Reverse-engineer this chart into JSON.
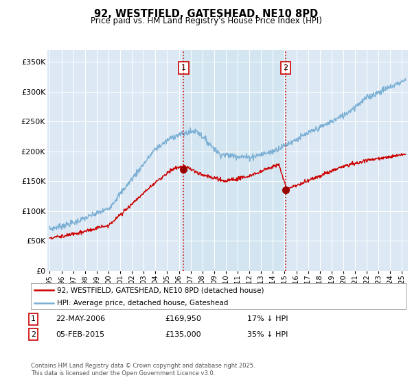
{
  "title": "92, WESTFIELD, GATESHEAD, NE10 8PD",
  "subtitle": "Price paid vs. HM Land Registry's House Price Index (HPI)",
  "ylabel_ticks": [
    "£0",
    "£50K",
    "£100K",
    "£150K",
    "£200K",
    "£250K",
    "£300K",
    "£350K"
  ],
  "ytick_values": [
    0,
    50000,
    100000,
    150000,
    200000,
    250000,
    300000,
    350000
  ],
  "ylim": [
    0,
    370000
  ],
  "xlim_start": 1994.8,
  "xlim_end": 2025.5,
  "hpi_color": "#7bafd4",
  "hpi_fill_color": "#d0e4f0",
  "price_color": "#cc0000",
  "vline_color": "#cc0000",
  "vline1_x": 2006.39,
  "vline2_x": 2015.09,
  "marker1_x": 2006.39,
  "marker1_y": 169950,
  "marker2_x": 2015.09,
  "marker2_y": 135000,
  "marker_color": "#990000",
  "legend_label_red": "92, WESTFIELD, GATESHEAD, NE10 8PD (detached house)",
  "legend_label_blue": "HPI: Average price, detached house, Gateshead",
  "annotation1_date": "22-MAY-2006",
  "annotation1_price": "£169,950",
  "annotation1_pct": "17% ↓ HPI",
  "annotation2_date": "05-FEB-2015",
  "annotation2_price": "£135,000",
  "annotation2_pct": "35% ↓ HPI",
  "footer": "Contains HM Land Registry data © Crown copyright and database right 2025.\nThis data is licensed under the Open Government Licence v3.0.",
  "bg_color": "#ffffff",
  "plot_bg_color": "#dce9f5"
}
